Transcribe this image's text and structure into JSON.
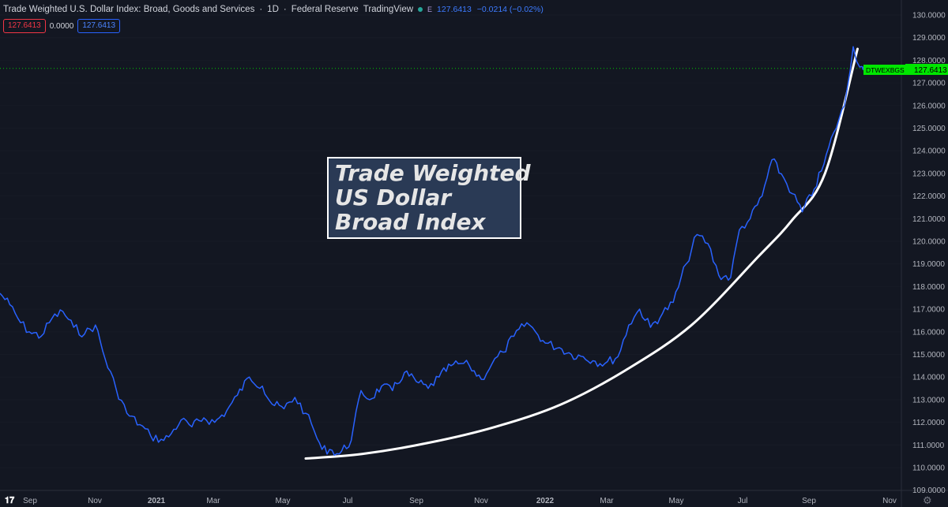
{
  "header": {
    "title": "Trade Weighted U.S. Dollar Index: Broad, Goods and Services",
    "interval": "1D",
    "source": "Federal Reserve",
    "platform": "TradingView",
    "badge": "E",
    "last": "127.6413",
    "change": "−0.0214 (−0.02%)"
  },
  "legend": {
    "value_red": "127.6413",
    "value_zero": "0.0000",
    "value_blue": "127.6413"
  },
  "annotation": {
    "line1": "Trade Weighted",
    "line2": "US Dollar",
    "line3": "Broad Index"
  },
  "price_label": {
    "symbol": "DTWEXBGS",
    "value": "127.6413"
  },
  "colors": {
    "background": "#131722",
    "series": "#2962ff",
    "trend": "#ffffff",
    "price_label": "#00e600",
    "grid": "#1e2230"
  },
  "icons": [
    "tradingview-logo-icon",
    "settings-gear-icon"
  ],
  "chart_data": {
    "type": "line",
    "y_ticks": [
      "130.0000",
      "129.0000",
      "128.0000",
      "127.0000",
      "126.0000",
      "125.0000",
      "124.0000",
      "123.0000",
      "122.0000",
      "121.0000",
      "120.0000",
      "119.0000",
      "118.0000",
      "117.0000",
      "116.0000",
      "115.0000",
      "114.0000",
      "113.0000",
      "112.0000",
      "111.0000",
      "110.0000",
      "109.0000"
    ],
    "x_ticks": [
      "Sep",
      "Nov",
      "2021",
      "Mar",
      "May",
      "Jul",
      "Sep",
      "Nov",
      "2022",
      "Mar",
      "May",
      "Jul",
      "Sep",
      "Nov"
    ],
    "bold_x_ticks": [
      "2021",
      "2022"
    ],
    "ylim": [
      109.0,
      130.3
    ],
    "last_value": 127.6413,
    "grid": false,
    "series": [
      {
        "x": [
          "2020-08-01",
          "2020-08-10",
          "2020-08-20",
          "2020-08-28",
          "2020-09-08",
          "2020-09-18",
          "2020-09-28",
          "2020-10-08",
          "2020-10-18",
          "2020-10-28",
          "2020-11-06",
          "2020-11-16",
          "2020-11-26",
          "2020-12-08",
          "2020-12-18",
          "2020-12-30",
          "2021-01-06",
          "2021-01-15",
          "2021-01-25",
          "2021-02-05",
          "2021-02-15",
          "2021-02-26",
          "2021-03-08",
          "2021-03-19",
          "2021-03-31",
          "2021-04-09",
          "2021-04-20",
          "2021-04-30",
          "2021-05-10",
          "2021-05-18",
          "2021-05-25",
          "2021-06-01",
          "2021-06-10",
          "2021-06-21",
          "2021-06-30",
          "2021-07-08",
          "2021-07-19",
          "2021-07-29",
          "2021-08-09",
          "2021-08-20",
          "2021-08-31",
          "2021-09-10",
          "2021-09-21",
          "2021-09-30",
          "2021-10-08",
          "2021-10-19",
          "2021-10-29",
          "2021-11-08",
          "2021-11-18",
          "2021-11-30",
          "2021-12-08",
          "2021-12-17",
          "2021-12-30",
          "2022-01-10",
          "2022-01-21",
          "2022-02-01",
          "2022-02-10",
          "2022-02-22",
          "2022-03-04",
          "2022-03-14",
          "2022-03-24",
          "2022-04-04",
          "2022-04-14",
          "2022-04-26",
          "2022-05-06",
          "2022-05-16",
          "2022-05-26",
          "2022-06-06",
          "2022-06-14",
          "2022-06-24",
          "2022-07-05",
          "2022-07-14",
          "2022-07-25",
          "2022-08-02",
          "2022-08-11",
          "2022-08-22",
          "2022-08-31",
          "2022-09-09",
          "2022-09-19",
          "2022-09-27",
          "2022-10-03",
          "2022-10-07"
        ],
        "y": [
          117.7,
          117.2,
          116.4,
          116.0,
          115.8,
          116.6,
          116.9,
          116.2,
          115.9,
          116.3,
          114.8,
          113.5,
          112.4,
          111.9,
          111.4,
          111.2,
          111.5,
          112.1,
          111.8,
          112.2,
          112.0,
          112.5,
          113.2,
          114.0,
          113.6,
          112.8,
          112.6,
          113.1,
          112.4,
          111.6,
          110.8,
          110.8,
          110.6,
          111.2,
          113.4,
          113.0,
          113.6,
          113.4,
          114.2,
          113.8,
          113.5,
          114.0,
          114.5,
          114.6,
          114.5,
          113.9,
          114.6,
          115.1,
          115.8,
          116.4,
          116.0,
          115.5,
          115.3,
          115.0,
          114.9,
          114.7,
          114.6,
          114.9,
          116.3,
          117.0,
          116.2,
          116.8,
          117.3,
          119.0,
          120.3,
          119.9,
          118.5,
          118.4,
          120.5,
          121.0,
          122.0,
          123.6,
          122.8,
          122.1,
          121.3,
          122.3,
          123.4,
          124.8,
          126.0,
          128.6,
          127.7,
          127.6413
        ],
        "color": "#2962ff"
      }
    ],
    "trend_line": {
      "x": [
        "2021-05-10",
        "2021-07-01",
        "2021-09-01",
        "2021-11-01",
        "2022-01-01",
        "2022-03-01",
        "2022-05-01",
        "2022-07-01",
        "2022-08-01",
        "2022-09-01",
        "2022-10-01"
      ],
      "y": [
        110.4,
        110.6,
        111.1,
        111.8,
        112.8,
        114.3,
        116.3,
        119.3,
        120.9,
        123.0,
        128.5
      ],
      "color": "#ffffff"
    }
  }
}
